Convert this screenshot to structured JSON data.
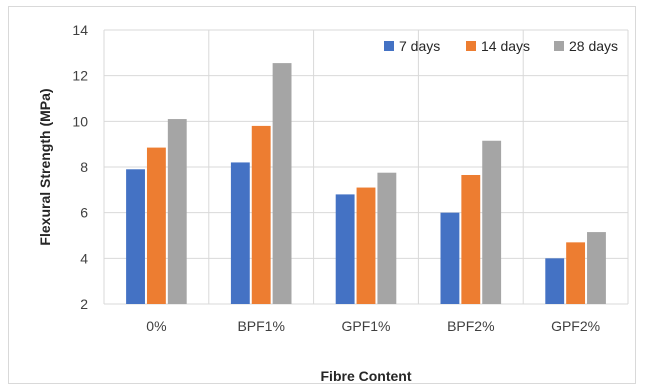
{
  "chart_data": {
    "type": "bar",
    "categories": [
      "0%",
      "BPF1%",
      "GPF1%",
      "BPF2%",
      "GPF2%"
    ],
    "series": [
      {
        "name": "7 days",
        "color": "#4472c4",
        "values": [
          7.9,
          8.2,
          6.8,
          6.0,
          4.0
        ]
      },
      {
        "name": "14 days",
        "color": "#ed7d31",
        "values": [
          8.85,
          9.8,
          7.1,
          7.65,
          4.7
        ]
      },
      {
        "name": "28 days",
        "color": "#a5a5a5",
        "values": [
          10.1,
          12.55,
          7.75,
          9.15,
          5.15
        ]
      }
    ],
    "xlabel": "Fibre Content",
    "ylabel": "Flexural Strength (MPa)",
    "ylim": [
      2,
      14
    ],
    "yticks": [
      2,
      4,
      6,
      8,
      10,
      12,
      14
    ],
    "grid": true,
    "legend": "top-right"
  }
}
